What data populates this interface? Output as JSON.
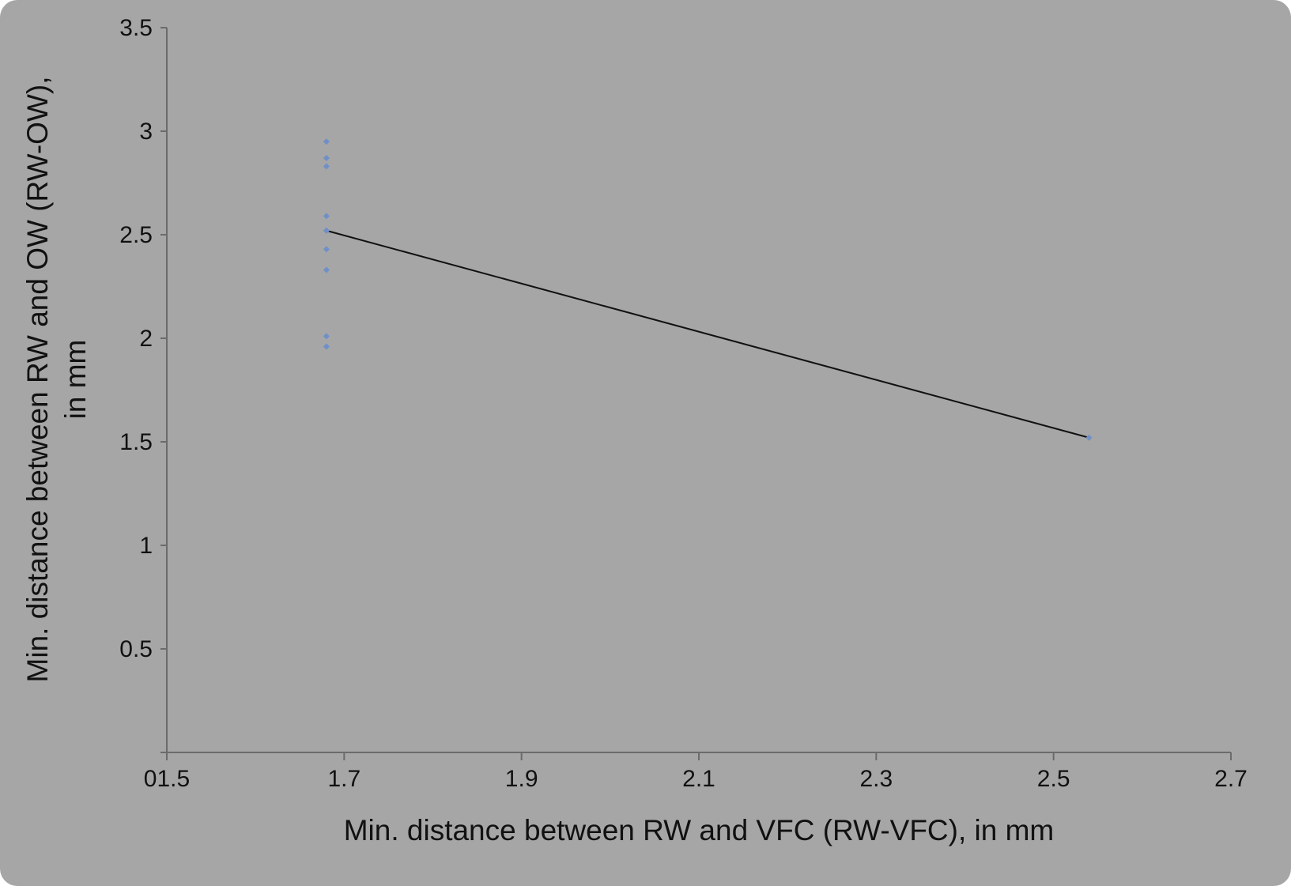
{
  "chart_data": {
    "type": "scatter",
    "title": "",
    "xlabel": "Min. distance between RW and VFC (RW-VFC), in mm",
    "ylabel_lines": [
      "Min. distance between RW and OW (RW-OW),",
      "in mm"
    ],
    "xlim": [
      1.5,
      2.7
    ],
    "ylim": [
      0,
      3.5
    ],
    "x_ticks": [
      1.5,
      1.7,
      1.9,
      2.1,
      2.3,
      2.5,
      2.7
    ],
    "x_tick_labels": [
      "01.5",
      "1.7",
      "1.9",
      "2.1",
      "2.3",
      "2.5",
      "2.7"
    ],
    "y_ticks": [
      0.5,
      1,
      1.5,
      2,
      2.5,
      3,
      3.5
    ],
    "y_tick_labels": [
      "0.5",
      "1",
      "1.5",
      "2",
      "2.5",
      "3",
      "3.5"
    ],
    "grid": false,
    "points": {
      "x": [
        1.68,
        1.68,
        1.68,
        1.68,
        1.68,
        1.68,
        1.68,
        1.68,
        1.68,
        1.68,
        2.54
      ],
      "y": [
        2.95,
        2.87,
        2.83,
        2.59,
        2.52,
        2.43,
        2.33,
        2.01,
        1.96,
        2.52,
        1.52
      ]
    },
    "trend_line": {
      "x": [
        1.68,
        2.54
      ],
      "y": [
        2.52,
        1.52
      ]
    },
    "colors": {
      "background": "#a6a6a6",
      "point": "#6f8fc7",
      "line": "#111111",
      "axis": "#6b6b6b"
    }
  }
}
